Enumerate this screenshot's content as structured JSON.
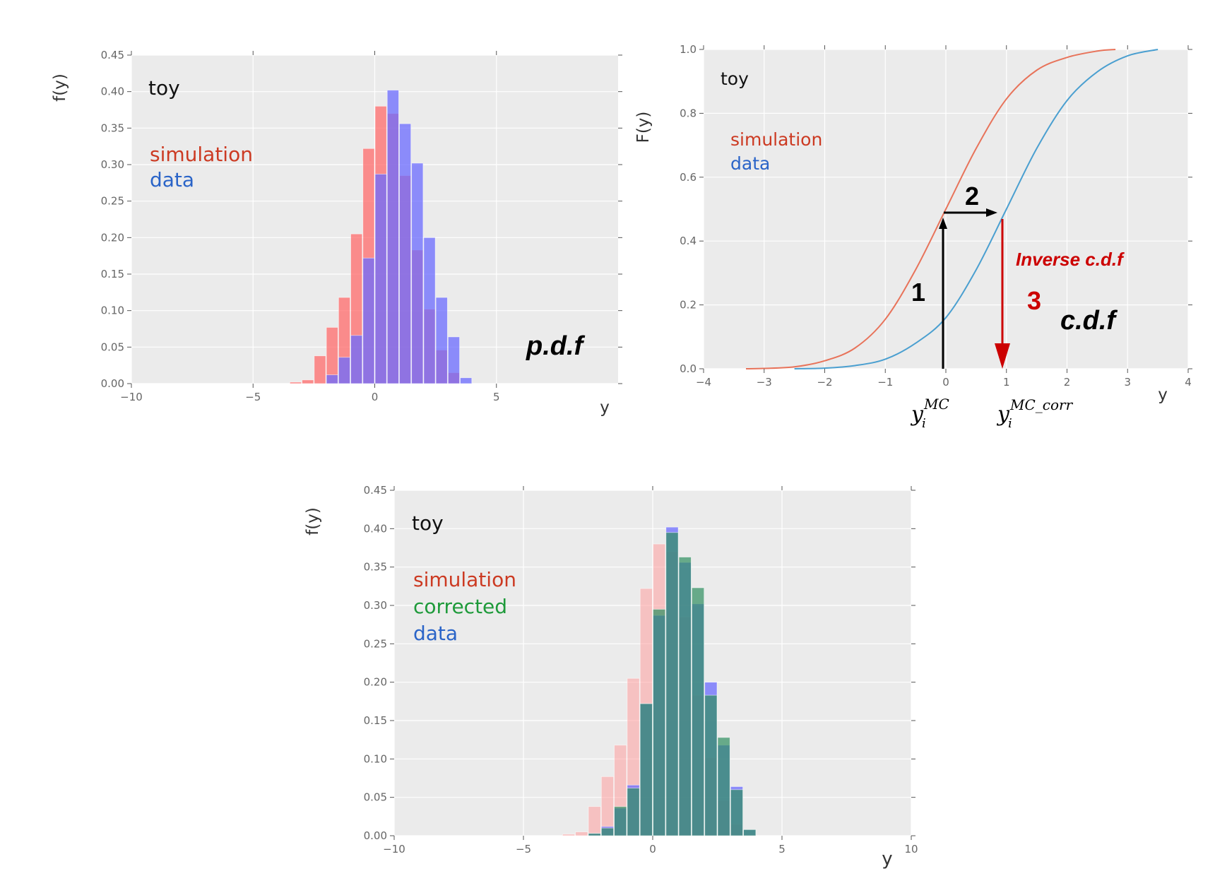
{
  "chart_data": [
    {
      "id": "pdf",
      "type": "bar",
      "ylabel": "f(y)",
      "xlabel": "y",
      "xlim": [
        -10,
        10
      ],
      "ylim": [
        0,
        0.45
      ],
      "xticks": [
        "−10",
        "−5",
        "0",
        "5"
      ],
      "yticks": [
        "0.00",
        "0.05",
        "0.10",
        "0.15",
        "0.20",
        "0.25",
        "0.30",
        "0.35",
        "0.40",
        "0.45"
      ],
      "grid": true,
      "legend": [
        "toy",
        "simulation",
        "data"
      ],
      "annotation": "p.d.f",
      "bin_width": 0.5,
      "series": [
        {
          "name": "simulation",
          "color": "#ff6b6b",
          "x": [
            -3.5,
            -3.0,
            -2.5,
            -2.0,
            -1.5,
            -1.0,
            -0.5,
            0.0,
            0.5,
            1.0,
            1.5,
            2.0,
            2.5,
            3.0
          ],
          "values": [
            0.002,
            0.005,
            0.038,
            0.077,
            0.118,
            0.205,
            0.322,
            0.38,
            0.37,
            0.285,
            0.183,
            0.102,
            0.046,
            0.015
          ]
        },
        {
          "name": "data",
          "color": "#6b6bff",
          "x": [
            -2.0,
            -1.5,
            -1.0,
            -0.5,
            0.0,
            0.5,
            1.0,
            1.5,
            2.0,
            2.5,
            3.0,
            3.5
          ],
          "values": [
            0.012,
            0.036,
            0.066,
            0.172,
            0.287,
            0.402,
            0.356,
            0.302,
            0.2,
            0.118,
            0.064,
            0.008
          ]
        }
      ]
    },
    {
      "id": "cdf",
      "type": "line",
      "ylabel": "F(y)",
      "xlabel": "y",
      "xlim": [
        -4,
        4
      ],
      "ylim": [
        0,
        1.0
      ],
      "xticks": [
        "−4",
        "−3",
        "−2",
        "−1",
        "0",
        "1",
        "2",
        "3",
        "4"
      ],
      "yticks": [
        "0.0",
        "0.2",
        "0.4",
        "0.6",
        "0.8",
        "1.0"
      ],
      "grid": true,
      "legend": [
        "toy",
        "simulation",
        "data"
      ],
      "annotation": "c.d.f",
      "series": [
        {
          "name": "simulation",
          "color": "#e8735a",
          "x": [
            -3.3,
            -3.0,
            -2.5,
            -2.0,
            -1.5,
            -1.0,
            -0.5,
            0.0,
            0.5,
            1.0,
            1.5,
            2.0,
            2.5,
            2.8
          ],
          "values": [
            0.0,
            0.001,
            0.006,
            0.025,
            0.065,
            0.155,
            0.31,
            0.5,
            0.69,
            0.845,
            0.935,
            0.975,
            0.995,
            1.0
          ]
        },
        {
          "name": "data",
          "color": "#4a9fd0",
          "x": [
            -2.5,
            -2.0,
            -1.5,
            -1.0,
            -0.5,
            0.0,
            0.5,
            1.0,
            1.5,
            2.0,
            2.5,
            3.0,
            3.5
          ],
          "values": [
            0.0,
            0.002,
            0.01,
            0.03,
            0.08,
            0.16,
            0.31,
            0.5,
            0.69,
            0.84,
            0.93,
            0.98,
            1.0
          ]
        }
      ],
      "annotations": {
        "step1": "1",
        "step2": "2",
        "step3": "3",
        "inverse": "Inverse c.d.f",
        "mc_base": "y",
        "mc_sub": "i",
        "mc_sup": "MC",
        "corr_base": "y",
        "corr_sub": "i",
        "corr_sup": "MC_corr"
      }
    },
    {
      "id": "corrected",
      "type": "bar",
      "ylabel": "f(y)",
      "xlabel": "y",
      "xlim": [
        -10,
        10
      ],
      "ylim": [
        0,
        0.45
      ],
      "xticks": [
        "−10",
        "−5",
        "0",
        "5",
        "10"
      ],
      "yticks": [
        "0.00",
        "0.05",
        "0.10",
        "0.15",
        "0.20",
        "0.25",
        "0.30",
        "0.35",
        "0.40",
        "0.45"
      ],
      "grid": true,
      "legend": [
        "toy",
        "simulation",
        "corrected",
        "data"
      ],
      "bin_width": 0.5,
      "series": [
        {
          "name": "simulation",
          "color": "#ff9f9f",
          "x": [
            -3.5,
            -3.0,
            -2.5,
            -2.0,
            -1.5,
            -1.0,
            -0.5,
            0.0,
            0.5,
            1.0,
            1.5,
            2.0,
            2.5,
            3.0
          ],
          "values": [
            0.002,
            0.005,
            0.038,
            0.077,
            0.118,
            0.205,
            0.322,
            0.38,
            0.37,
            0.285,
            0.183,
            0.102,
            0.046,
            0.015
          ]
        },
        {
          "name": "data",
          "color": "#6b6bff",
          "x": [
            -2.5,
            -2.0,
            -1.5,
            -1.0,
            -0.5,
            0.0,
            0.5,
            1.0,
            1.5,
            2.0,
            2.5,
            3.0,
            3.5
          ],
          "values": [
            0.003,
            0.012,
            0.036,
            0.066,
            0.172,
            0.287,
            0.402,
            0.356,
            0.302,
            0.2,
            0.118,
            0.064,
            0.008
          ]
        },
        {
          "name": "corrected",
          "color": "#2f8f5f",
          "x": [
            -2.5,
            -2.0,
            -1.5,
            -1.0,
            -0.5,
            0.0,
            0.5,
            1.0,
            1.5,
            2.0,
            2.5,
            3.0,
            3.5
          ],
          "values": [
            0.003,
            0.01,
            0.038,
            0.062,
            0.172,
            0.295,
            0.395,
            0.363,
            0.323,
            0.183,
            0.128,
            0.06,
            0.008
          ]
        }
      ]
    }
  ]
}
